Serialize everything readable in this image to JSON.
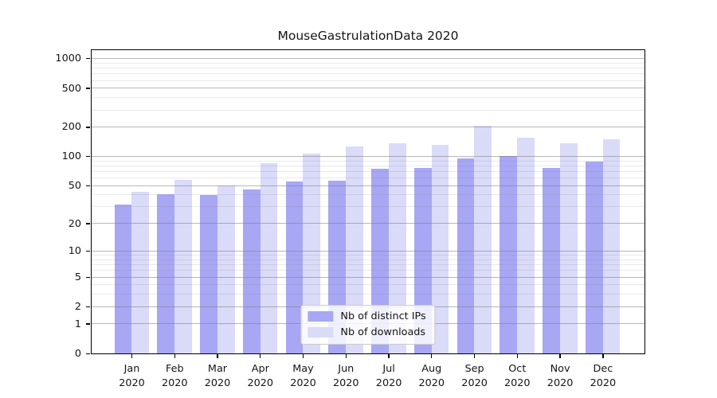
{
  "chart_data": {
    "type": "bar",
    "title": "MouseGastrulationData 2020",
    "categories": [
      "Jan",
      "Feb",
      "Mar",
      "Apr",
      "May",
      "Jun",
      "Jul",
      "Aug",
      "Sep",
      "Oct",
      "Nov",
      "Dec"
    ],
    "category_year": "2020",
    "series": [
      {
        "name": "Nb of distinct IPs",
        "color": "#a7a7f4",
        "values": [
          32,
          41,
          40,
          46,
          55,
          56,
          75,
          77,
          96,
          102,
          76,
          89
        ]
      },
      {
        "name": "Nb of downloads",
        "color": "#dadaf9",
        "values": [
          43,
          57,
          50,
          85,
          107,
          128,
          138,
          132,
          205,
          157,
          137,
          149
        ]
      }
    ],
    "xlabel": "",
    "ylabel": "",
    "y_scale": "log10(1+x)",
    "y_major_ticks": [
      0,
      1,
      2,
      5,
      10,
      20,
      50,
      100,
      200,
      500,
      1000
    ],
    "y_minor_ticks": [
      3,
      4,
      6,
      7,
      8,
      9,
      30,
      40,
      60,
      70,
      80,
      90,
      300,
      400,
      600,
      700,
      800,
      900
    ],
    "ylim": [
      0,
      1220
    ],
    "grid": true,
    "legend_position": "lower center",
    "colors": {
      "axis": "#000000",
      "major_grid": "#b9b9b9",
      "minor_grid": "#e9e9e9",
      "text": "#151515",
      "legend_border": "#cccccc"
    }
  }
}
